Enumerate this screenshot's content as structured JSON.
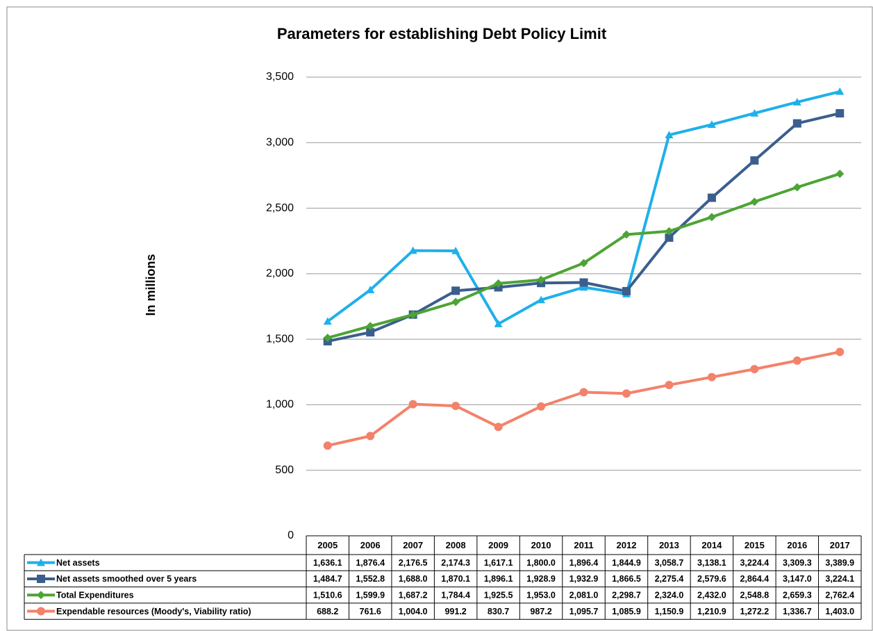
{
  "chart_data": {
    "type": "line",
    "title": "Parameters for establishing Debt Policy Limit",
    "y_label": "In millions",
    "categories": [
      "2005",
      "2006",
      "2007",
      "2008",
      "2009",
      "2010",
      "2011",
      "2012",
      "2013",
      "2014",
      "2015",
      "2016",
      "2017"
    ],
    "ylim": [
      0,
      3500
    ],
    "yticks": [
      0,
      {
        "value": 500,
        "label": "500"
      },
      {
        "value": 1000,
        "label": "1,000"
      },
      {
        "value": 1500,
        "label": "1,500"
      },
      {
        "value": 2000,
        "label": "2,000"
      },
      {
        "value": 2500,
        "label": "2,500"
      },
      {
        "value": 3000,
        "label": "3,000"
      },
      {
        "value": 3500,
        "label": "3,500"
      }
    ],
    "grid": true,
    "data_table": true,
    "series": [
      {
        "name": "Net assets",
        "color": "#1fb0ea",
        "marker": "triangle",
        "values": [
          1636.1,
          1876.4,
          2176.5,
          2174.3,
          1617.1,
          1800.0,
          1896.4,
          1844.9,
          3058.7,
          3138.1,
          3224.4,
          3309.3,
          3389.9
        ],
        "value_labels": [
          "1,636.1",
          "1,876.4",
          "2,176.5",
          "2,174.3",
          "1,617.1",
          "1,800.0",
          "1,896.4",
          "1,844.9",
          "3,058.7",
          "3,138.1",
          "3,224.4",
          "3,309.3",
          "3,389.9"
        ]
      },
      {
        "name": "Net assets smoothed over 5 years",
        "color": "#3a5e8e",
        "marker": "square",
        "values": [
          1484.7,
          1552.8,
          1688.0,
          1870.1,
          1896.1,
          1928.9,
          1932.9,
          1866.5,
          2275.4,
          2579.6,
          2864.4,
          3147.0,
          3224.1
        ],
        "value_labels": [
          "1,484.7",
          "1,552.8",
          "1,688.0",
          "1,870.1",
          "1,896.1",
          "1,928.9",
          "1,932.9",
          "1,866.5",
          "2,275.4",
          "2,579.6",
          "2,864.4",
          "3,147.0",
          "3,224.1"
        ]
      },
      {
        "name": "Total Expenditures",
        "color": "#4ca434",
        "marker": "diamond",
        "values": [
          1510.6,
          1599.9,
          1687.2,
          1784.4,
          1925.5,
          1953.0,
          2081.0,
          2298.7,
          2324.0,
          2432.0,
          2548.8,
          2659.3,
          2762.4
        ],
        "value_labels": [
          "1,510.6",
          "1,599.9",
          "1,687.2",
          "1,784.4",
          "1,925.5",
          "1,953.0",
          "2,081.0",
          "2,298.7",
          "2,324.0",
          "2,432.0",
          "2,548.8",
          "2,659.3",
          "2,762.4"
        ]
      },
      {
        "name": "Expendable resources (Moody's, Viability ratio)",
        "color": "#f3826a",
        "marker": "circle",
        "values": [
          688.2,
          761.6,
          1004.0,
          991.2,
          830.7,
          987.2,
          1095.7,
          1085.9,
          1150.9,
          1210.9,
          1272.2,
          1336.7,
          1403.0
        ],
        "value_labels": [
          "688.2",
          "761.6",
          "1,004.0",
          "991.2",
          "830.7",
          "987.2",
          "1,095.7",
          "1,085.9",
          "1,150.9",
          "1,210.9",
          "1,272.2",
          "1,336.7",
          "1,403.0"
        ]
      }
    ]
  }
}
